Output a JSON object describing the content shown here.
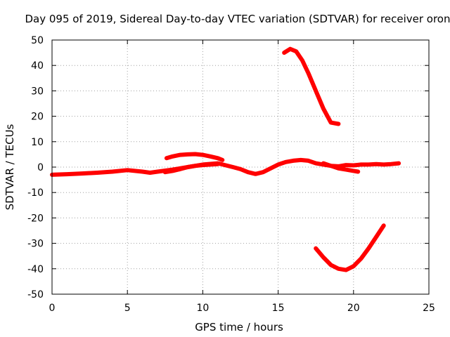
{
  "chart_data": {
    "type": "line",
    "title": "Day 095 of 2019, Sidereal Day-to-day VTEC variation (SDTVAR) for receiver oron",
    "xlabel": "GPS time / hours",
    "ylabel": "SDTVAR / TECUs",
    "xlim": [
      0,
      25
    ],
    "ylim": [
      -50,
      50
    ],
    "xticks": [
      0,
      5,
      10,
      15,
      20,
      25
    ],
    "yticks": [
      -50,
      -40,
      -30,
      -20,
      -10,
      0,
      10,
      20,
      30,
      40,
      50
    ],
    "grid": true,
    "legend": "none",
    "color": "#ff0000",
    "series": [
      {
        "name": "main-trace",
        "x": [
          0,
          1,
          2,
          3,
          4,
          5,
          6,
          6.5,
          7,
          8,
          9,
          10,
          11,
          12,
          12.5,
          13,
          13.5,
          14,
          14.5,
          15,
          15.5,
          16,
          16.5,
          17,
          17.5,
          18,
          18.5,
          19,
          19.5,
          20,
          20.5,
          21,
          21.5,
          22,
          22.5,
          23
        ],
        "y": [
          -3,
          -2.8,
          -2.5,
          -2.2,
          -1.8,
          -1.2,
          -1.8,
          -2.2,
          -1.8,
          -1,
          0,
          1,
          1.5,
          0,
          -0.8,
          -2,
          -2.7,
          -2,
          -0.5,
          1,
          2,
          2.5,
          2.8,
          2.5,
          1.5,
          1,
          0.5,
          0.3,
          0.8,
          0.7,
          1,
          1,
          1.2,
          1,
          1.2,
          1.5
        ]
      },
      {
        "name": "arc-7-11",
        "x": [
          7.6,
          8,
          8.5,
          9,
          9.5,
          10,
          10.5,
          11,
          11.3
        ],
        "y": [
          3.5,
          4.2,
          4.8,
          5,
          5.1,
          4.8,
          4.2,
          3.5,
          2.8
        ]
      },
      {
        "name": "lower-band-7-11",
        "x": [
          7.5,
          8,
          8.5,
          9,
          9.5,
          10,
          10.5,
          11
        ],
        "y": [
          -2,
          -1.5,
          -0.8,
          0,
          0.5,
          0.8,
          1,
          1.2
        ]
      },
      {
        "name": "dip-18-21",
        "x": [
          18,
          18.5,
          19,
          19.5,
          20,
          20.3
        ],
        "y": [
          1.5,
          0.5,
          -0.5,
          -1,
          -1.5,
          -1.8
        ]
      },
      {
        "name": "upper-descending",
        "x": [
          15.4,
          15.8,
          16.2,
          16.6,
          17,
          17.5,
          18,
          18.5,
          19
        ],
        "y": [
          45,
          46.5,
          45.5,
          42,
          37,
          30,
          23,
          17.5,
          17
        ]
      },
      {
        "name": "lower-u",
        "x": [
          17.5,
          18,
          18.5,
          19,
          19.5,
          20,
          20.5,
          21,
          21.5,
          22
        ],
        "y": [
          -32,
          -35.5,
          -38.5,
          -40,
          -40.5,
          -39,
          -36,
          -32,
          -27.5,
          -23
        ]
      }
    ]
  }
}
